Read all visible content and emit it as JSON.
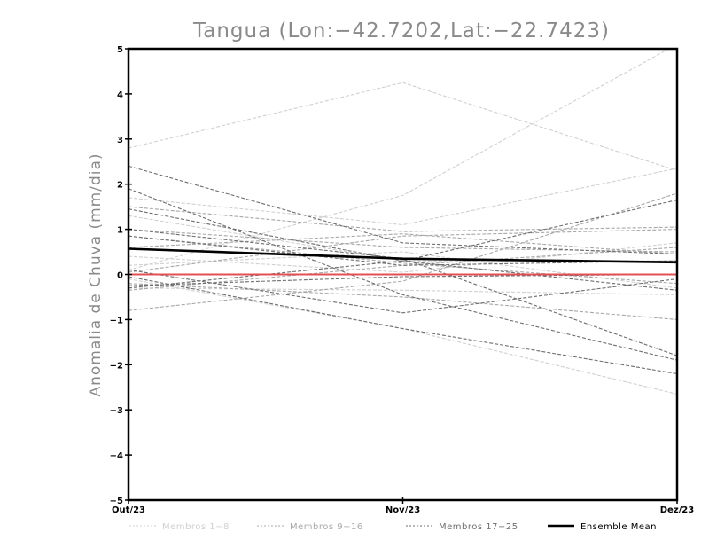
{
  "chart_data": {
    "type": "line",
    "title": "Tangua (Lon:−42.7202,Lat:−22.7423)",
    "xlabel": "",
    "ylabel": "Anomalia de Chuva (mm/dia)",
    "categories": [
      "Out/23",
      "Nov/23",
      "Dez/23"
    ],
    "ylim": [
      -5,
      5
    ],
    "yticks": [
      {
        "value": -5,
        "label": "−5"
      },
      {
        "value": -4,
        "label": "−4"
      },
      {
        "value": -3,
        "label": "−3"
      },
      {
        "value": -2,
        "label": "−2"
      },
      {
        "value": -1,
        "label": "−1"
      },
      {
        "value": 0,
        "label": "0"
      },
      {
        "value": 1,
        "label": "1"
      },
      {
        "value": 2,
        "label": "2"
      },
      {
        "value": 3,
        "label": "3"
      },
      {
        "value": 4,
        "label": "4"
      },
      {
        "value": 5,
        "label": "5"
      }
    ],
    "grid": false,
    "colors": {
      "members_1_8": "#d0d0d0",
      "members_9_16": "#a8a8a8",
      "members_17_25": "#6e6e6e",
      "ensemble_mean": "#000000",
      "zero_line": "#e05050"
    },
    "series": [
      {
        "name": "m1",
        "group": "1-8",
        "values": [
          2.8,
          4.25,
          2.3
        ]
      },
      {
        "name": "m2",
        "group": "1-8",
        "values": [
          0.1,
          1.75,
          5.1
        ]
      },
      {
        "name": "m3",
        "group": "1-8",
        "values": [
          1.7,
          1.1,
          2.35
        ]
      },
      {
        "name": "m4",
        "group": "1-8",
        "values": [
          0.2,
          0.5,
          -0.3
        ]
      },
      {
        "name": "m5",
        "group": "1-8",
        "values": [
          -0.1,
          -1.2,
          -2.65
        ]
      },
      {
        "name": "m6",
        "group": "1-8",
        "values": [
          -0.3,
          -0.35,
          -0.45
        ]
      },
      {
        "name": "m7",
        "group": "1-8",
        "values": [
          0.4,
          0.05,
          0.7
        ]
      },
      {
        "name": "m8",
        "group": "1-8",
        "values": [
          1.3,
          0.3,
          0.3
        ]
      },
      {
        "name": "m9",
        "group": "9-16",
        "values": [
          1.5,
          0.95,
          1.05
        ]
      },
      {
        "name": "m10",
        "group": "9-16",
        "values": [
          1.0,
          0.6,
          0.5
        ]
      },
      {
        "name": "m11",
        "group": "9-16",
        "values": [
          -0.8,
          -0.15,
          1.8
        ]
      },
      {
        "name": "m12",
        "group": "9-16",
        "values": [
          -0.2,
          -0.5,
          -1.0
        ]
      },
      {
        "name": "m13",
        "group": "9-16",
        "values": [
          0.05,
          0.85,
          1.0
        ]
      },
      {
        "name": "m14",
        "group": "9-16",
        "values": [
          0.85,
          0.25,
          -0.2
        ]
      },
      {
        "name": "m15",
        "group": "9-16",
        "values": [
          -0.35,
          0.2,
          0.6
        ]
      },
      {
        "name": "m16",
        "group": "9-16",
        "values": [
          0.6,
          0.9,
          0.45
        ]
      },
      {
        "name": "m17",
        "group": "17-25",
        "values": [
          2.4,
          0.7,
          0.45
        ]
      },
      {
        "name": "m18",
        "group": "17-25",
        "values": [
          1.9,
          -0.45,
          -1.9
        ]
      },
      {
        "name": "m19",
        "group": "17-25",
        "values": [
          1.45,
          0.3,
          -0.35
        ]
      },
      {
        "name": "m20",
        "group": "17-25",
        "values": [
          1.0,
          0.35,
          -1.8
        ]
      },
      {
        "name": "m21",
        "group": "17-25",
        "values": [
          0.85,
          0.2,
          0.3
        ]
      },
      {
        "name": "m22",
        "group": "17-25",
        "values": [
          -0.05,
          -1.2,
          -2.2
        ]
      },
      {
        "name": "m23",
        "group": "17-25",
        "values": [
          -0.3,
          0.3,
          1.65
        ]
      },
      {
        "name": "m24",
        "group": "17-25",
        "values": [
          0.1,
          -0.85,
          -0.1
        ]
      },
      {
        "name": "m25",
        "group": "17-25",
        "values": [
          -0.25,
          -0.05,
          0.0
        ]
      },
      {
        "name": "Ensemble Mean",
        "group": "mean",
        "values": [
          0.57,
          0.35,
          0.27
        ]
      }
    ],
    "legend": [
      {
        "group": "1-8",
        "label": "Membros 1−8"
      },
      {
        "group": "9-16",
        "label": "Membros 9−16"
      },
      {
        "group": "17-25",
        "label": "Membros 17−25"
      },
      {
        "group": "mean",
        "label": "Ensemble Mean"
      }
    ]
  }
}
